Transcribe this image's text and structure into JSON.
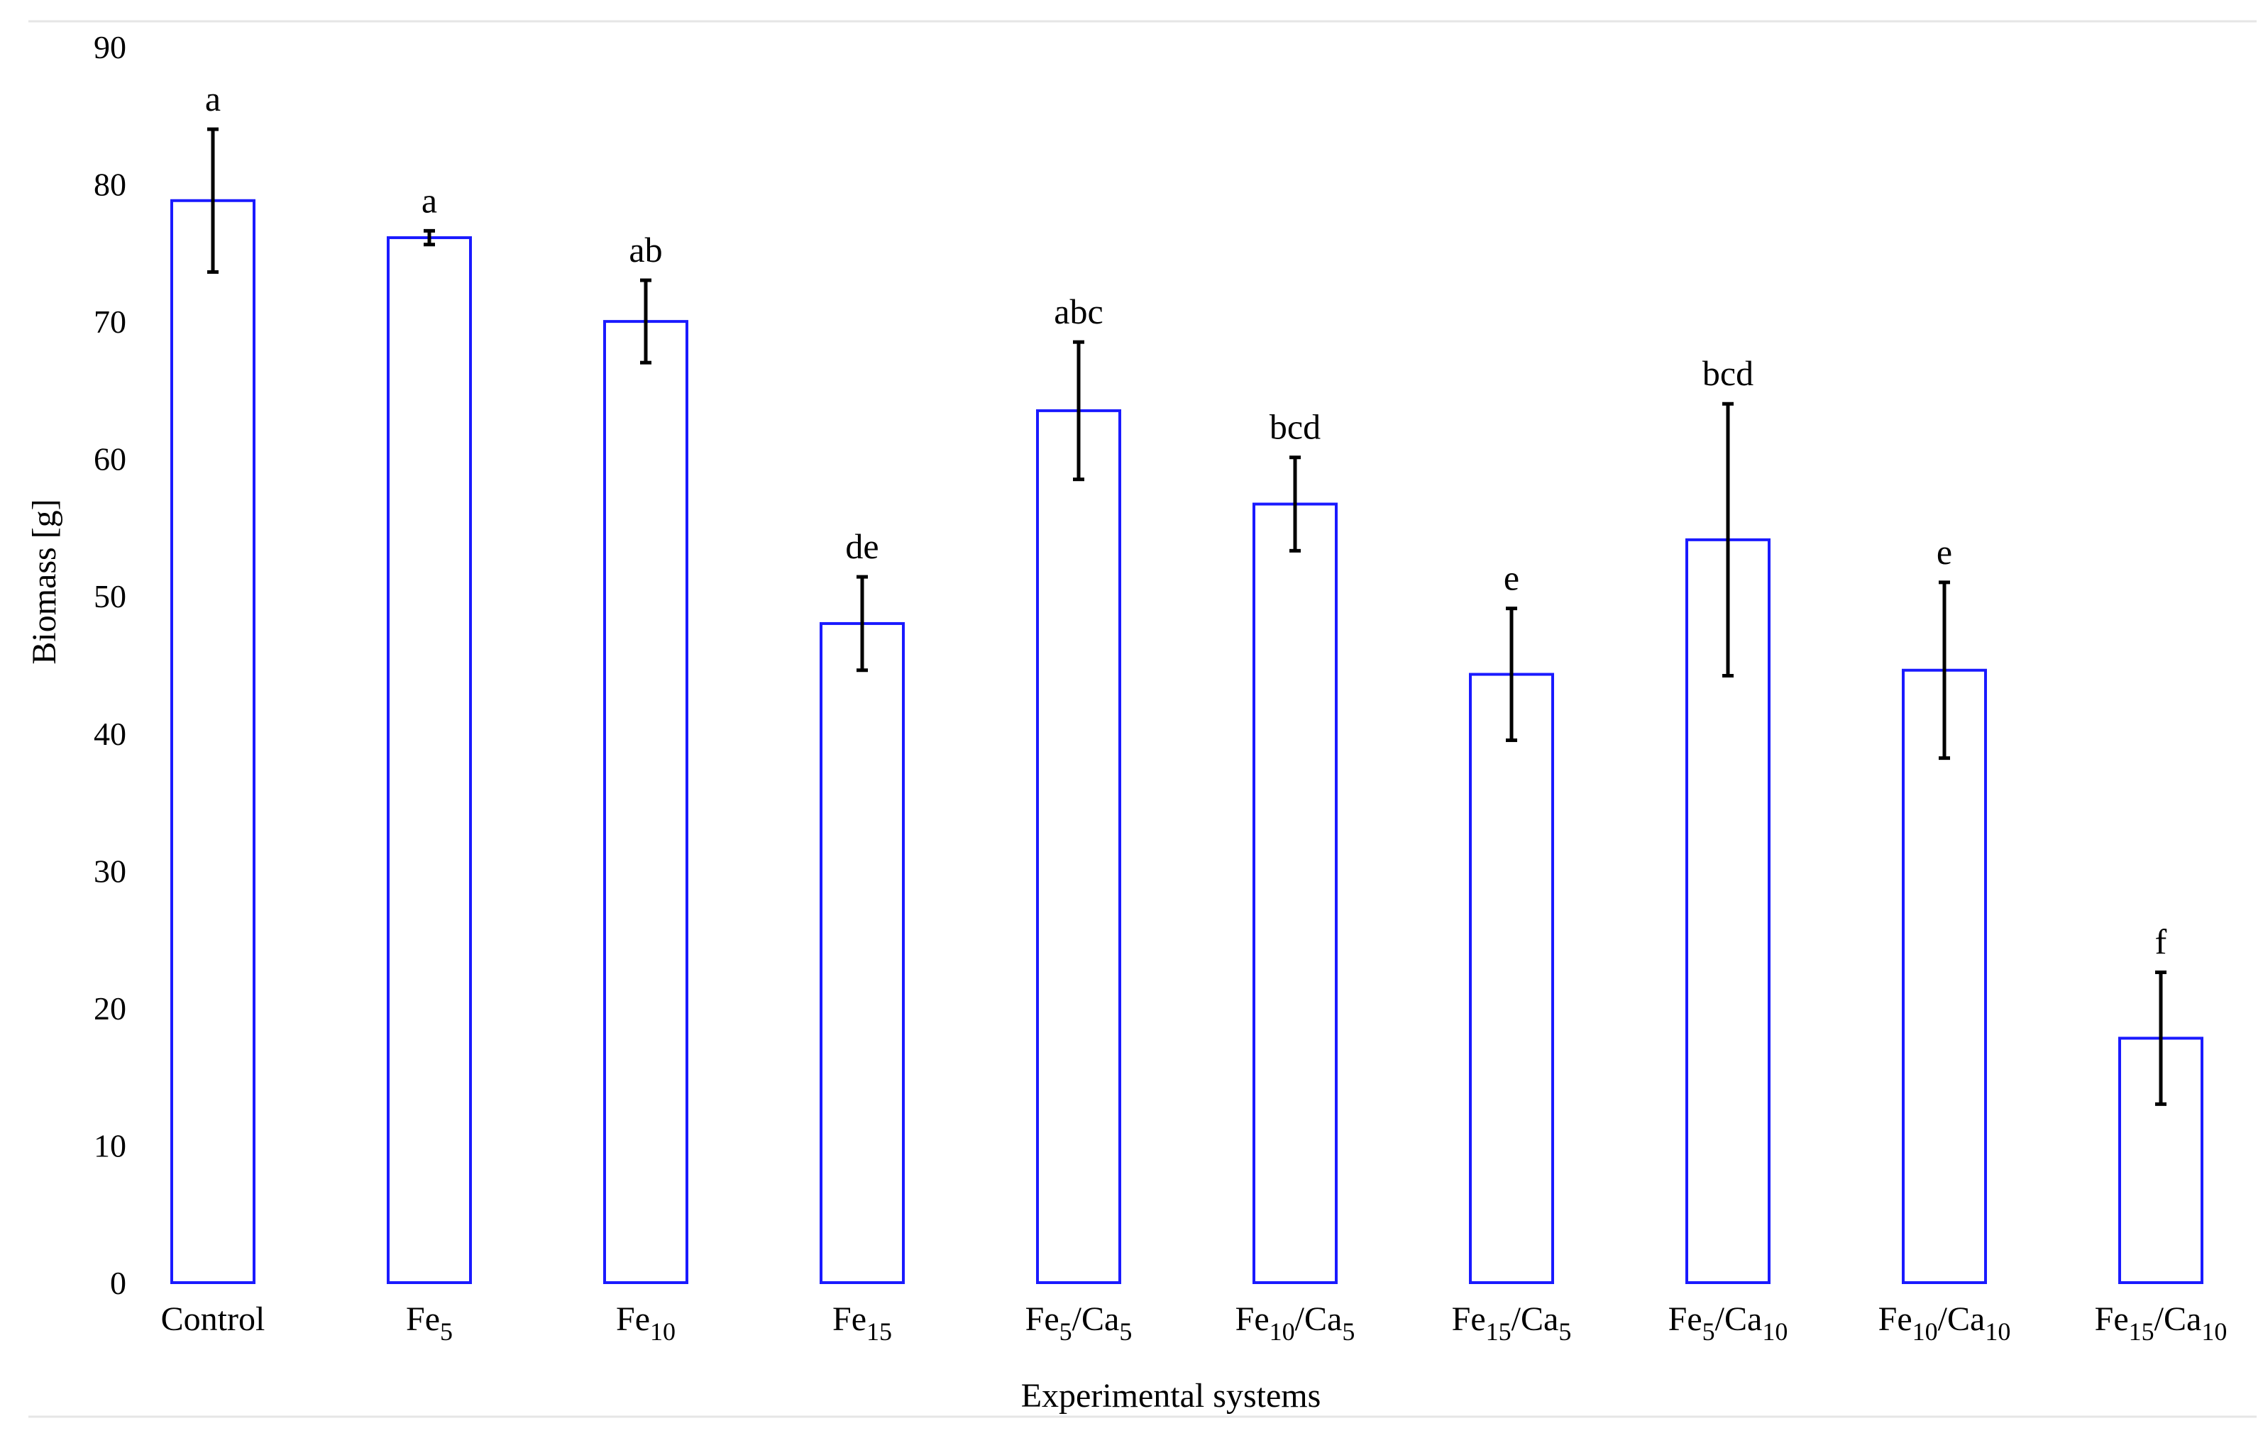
{
  "chart_data": {
    "type": "bar",
    "title": "",
    "xlabel": "Experimental systems",
    "ylabel": "Biomass [g]",
    "ylim": [
      0,
      90
    ],
    "yticks": [
      0,
      10,
      20,
      30,
      40,
      50,
      60,
      70,
      80,
      90
    ],
    "grid": false,
    "legend": "none",
    "bar_color": "#1a1aff",
    "error_bar_color": "#000000",
    "categories": [
      {
        "base": "Control",
        "parts": [
          {
            "t": "Control",
            "sub": false
          }
        ]
      },
      {
        "base": "Fe5",
        "parts": [
          {
            "t": "Fe",
            "sub": false
          },
          {
            "t": "5",
            "sub": true
          }
        ]
      },
      {
        "base": "Fe10",
        "parts": [
          {
            "t": "Fe",
            "sub": false
          },
          {
            "t": "10",
            "sub": true
          }
        ]
      },
      {
        "base": "Fe15",
        "parts": [
          {
            "t": "Fe",
            "sub": false
          },
          {
            "t": "15",
            "sub": true
          }
        ]
      },
      {
        "base": "Fe5/Ca5",
        "parts": [
          {
            "t": "Fe",
            "sub": false
          },
          {
            "t": "5",
            "sub": true
          },
          {
            "t": "/Ca",
            "sub": false
          },
          {
            "t": "5",
            "sub": true
          }
        ]
      },
      {
        "base": "Fe10/Ca5",
        "parts": [
          {
            "t": "Fe",
            "sub": false
          },
          {
            "t": "10",
            "sub": true
          },
          {
            "t": "/Ca",
            "sub": false
          },
          {
            "t": "5",
            "sub": true
          }
        ]
      },
      {
        "base": "Fe15/Ca5",
        "parts": [
          {
            "t": "Fe",
            "sub": false
          },
          {
            "t": "15",
            "sub": true
          },
          {
            "t": "/Ca",
            "sub": false
          },
          {
            "t": "5",
            "sub": true
          }
        ]
      },
      {
        "base": "Fe5/Ca10",
        "parts": [
          {
            "t": "Fe",
            "sub": false
          },
          {
            "t": "5",
            "sub": true
          },
          {
            "t": "/Ca",
            "sub": false
          },
          {
            "t": "10",
            "sub": true
          }
        ]
      },
      {
        "base": "Fe10/Ca10",
        "parts": [
          {
            "t": "Fe",
            "sub": false
          },
          {
            "t": "10",
            "sub": true
          },
          {
            "t": "/Ca",
            "sub": false
          },
          {
            "t": "10",
            "sub": true
          }
        ]
      },
      {
        "base": "Fe15/Ca10",
        "parts": [
          {
            "t": "Fe",
            "sub": false
          },
          {
            "t": "15",
            "sub": true
          },
          {
            "t": "/Ca",
            "sub": false
          },
          {
            "t": "10",
            "sub": true
          }
        ]
      }
    ],
    "values": [
      78.8,
      76.1,
      70.0,
      48.0,
      63.5,
      56.7,
      44.3,
      54.1,
      44.6,
      17.8
    ],
    "errors": [
      5.2,
      0.5,
      3.0,
      3.4,
      5.0,
      3.4,
      4.8,
      9.9,
      6.4,
      4.8
    ],
    "significance": [
      "a",
      "a",
      "ab",
      "de",
      "abc",
      "bcd",
      "e",
      "bcd",
      "e",
      "f"
    ]
  }
}
